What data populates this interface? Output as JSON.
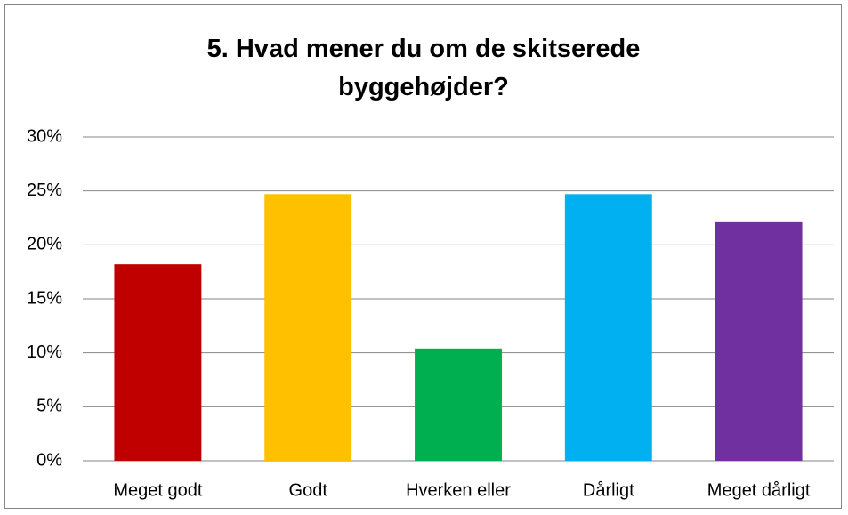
{
  "chart_data": {
    "type": "bar",
    "title": "5. Hvad mener du om de skitserede byggehøjder?",
    "categories": [
      "Meget godt",
      "Godt",
      "Hverken eller",
      "Dårligt",
      "Meget dårligt"
    ],
    "values": [
      18.2,
      24.7,
      10.4,
      24.7,
      22.1
    ],
    "colors": [
      "#c00000",
      "#ffc000",
      "#00b050",
      "#00b0f0",
      "#7030a0"
    ],
    "ylim": [
      0,
      30
    ],
    "yticks": [
      {
        "value": 0,
        "label": "0%"
      },
      {
        "value": 5,
        "label": "5%"
      },
      {
        "value": 10,
        "label": "10%"
      },
      {
        "value": 15,
        "label": "15%"
      },
      {
        "value": 20,
        "label": "20%"
      },
      {
        "value": 25,
        "label": "25%"
      },
      {
        "value": 30,
        "label": "30%"
      }
    ],
    "grid": true
  }
}
